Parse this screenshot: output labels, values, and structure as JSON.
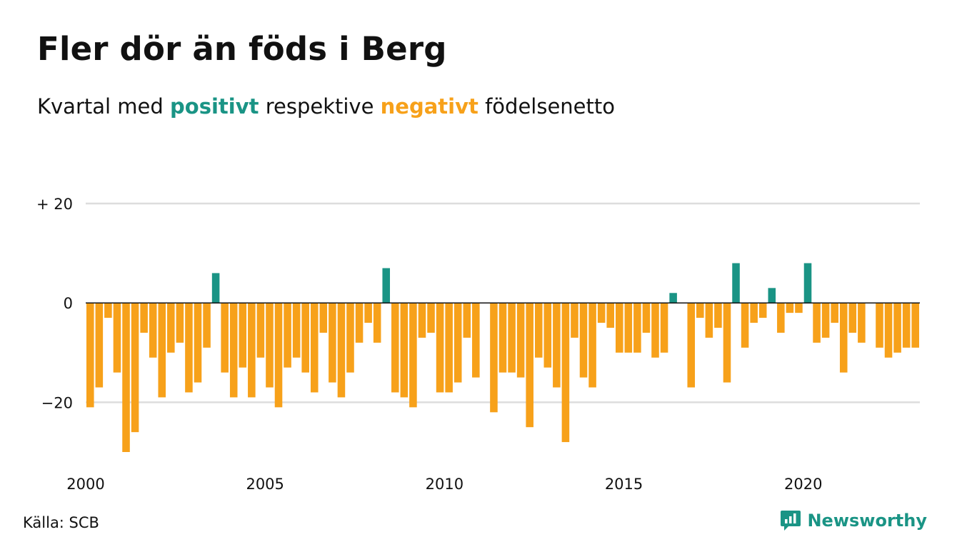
{
  "title": "Fler dör än föds i Berg",
  "subtitle": {
    "prefix": "Kvartal med ",
    "positive_word": "positivt",
    "middle": " respektive ",
    "negative_word": "negativt",
    "suffix": " födelsenetto"
  },
  "colors": {
    "positive": "#1a9485",
    "negative": "#f7a11a",
    "grid": "#dddddd",
    "text": "#111111"
  },
  "source": "Källa: SCB",
  "brand": {
    "name": "Newsworthy",
    "icon": "newsworthy-logo-icon"
  },
  "chart_data": {
    "type": "bar",
    "title": "Fler dör än föds i Berg",
    "subtitle": "Kvartal med positivt respektive negativt födelsenetto",
    "xlabel": "",
    "ylabel": "",
    "xlim": [
      2000,
      2023.25
    ],
    "ylim": [
      -30,
      20
    ],
    "yticks": [
      {
        "value": 20,
        "label": "+ 20"
      },
      {
        "value": 0,
        "label": "0"
      },
      {
        "value": -20,
        "label": "−20"
      }
    ],
    "xticks": [
      {
        "value": 2000,
        "label": "2000"
      },
      {
        "value": 2005,
        "label": "2005"
      },
      {
        "value": 2010,
        "label": "2010"
      },
      {
        "value": 2015,
        "label": "2015"
      },
      {
        "value": 2020,
        "label": "2020"
      }
    ],
    "grid": true,
    "legend": "none",
    "bar_span": "quarter",
    "series": [
      {
        "quarters": [
          "2000-Q1",
          "2000-Q2",
          "2000-Q3",
          "2000-Q4",
          "2001-Q1",
          "2001-Q2",
          "2001-Q3",
          "2001-Q4",
          "2002-Q1",
          "2002-Q2",
          "2002-Q3",
          "2002-Q4",
          "2003-Q1",
          "2003-Q2",
          "2003-Q3",
          "2003-Q4",
          "2004-Q1",
          "2004-Q2",
          "2004-Q3",
          "2004-Q4",
          "2005-Q1",
          "2005-Q2",
          "2005-Q3",
          "2005-Q4",
          "2006-Q1",
          "2006-Q2",
          "2006-Q3",
          "2006-Q4",
          "2007-Q1",
          "2007-Q2",
          "2007-Q3",
          "2007-Q4",
          "2008-Q1",
          "2008-Q2",
          "2008-Q3",
          "2008-Q4",
          "2009-Q1",
          "2009-Q2",
          "2009-Q3",
          "2009-Q4",
          "2010-Q1",
          "2010-Q2",
          "2010-Q3",
          "2010-Q4",
          "2011-Q1",
          "2011-Q2",
          "2011-Q3",
          "2011-Q4",
          "2012-Q1",
          "2012-Q2",
          "2012-Q3",
          "2012-Q4",
          "2013-Q1",
          "2013-Q2",
          "2013-Q3",
          "2013-Q4",
          "2014-Q1",
          "2014-Q2",
          "2014-Q3",
          "2014-Q4",
          "2015-Q1",
          "2015-Q2",
          "2015-Q3",
          "2015-Q4",
          "2016-Q1",
          "2016-Q2",
          "2016-Q3",
          "2016-Q4",
          "2017-Q1",
          "2017-Q2",
          "2017-Q3",
          "2017-Q4",
          "2018-Q1",
          "2018-Q2",
          "2018-Q3",
          "2018-Q4",
          "2019-Q1",
          "2019-Q2",
          "2019-Q3",
          "2019-Q4",
          "2020-Q1",
          "2020-Q2",
          "2020-Q3",
          "2020-Q4",
          "2021-Q1",
          "2021-Q2",
          "2021-Q3",
          "2021-Q4",
          "2022-Q1",
          "2022-Q2",
          "2022-Q3",
          "2022-Q4",
          "2023-Q1"
        ],
        "values": [
          -21,
          -17,
          -3,
          -14,
          -30,
          -26,
          -6,
          -11,
          -19,
          -10,
          -8,
          -18,
          -16,
          -9,
          6,
          -14,
          -19,
          -13,
          -19,
          -11,
          -17,
          -21,
          -13,
          -11,
          -14,
          -18,
          -6,
          -16,
          -19,
          -14,
          -8,
          -4,
          -8,
          7,
          -18,
          -19,
          -21,
          -7,
          -6,
          -18,
          -18,
          -16,
          -7,
          -15,
          0,
          -22,
          -14,
          -14,
          -15,
          -25,
          -11,
          -13,
          -17,
          -28,
          -7,
          -15,
          -17,
          -4,
          -5,
          -10,
          -10,
          -10,
          -6,
          -11,
          -10,
          2,
          0,
          -17,
          -3,
          -7,
          -5,
          -16,
          8,
          -9,
          -4,
          -3,
          3,
          -6,
          -2,
          -2,
          8,
          -8,
          -7,
          -4,
          -14,
          -6,
          -8,
          0,
          -9,
          -11,
          -10,
          -9,
          -9
        ]
      }
    ]
  }
}
